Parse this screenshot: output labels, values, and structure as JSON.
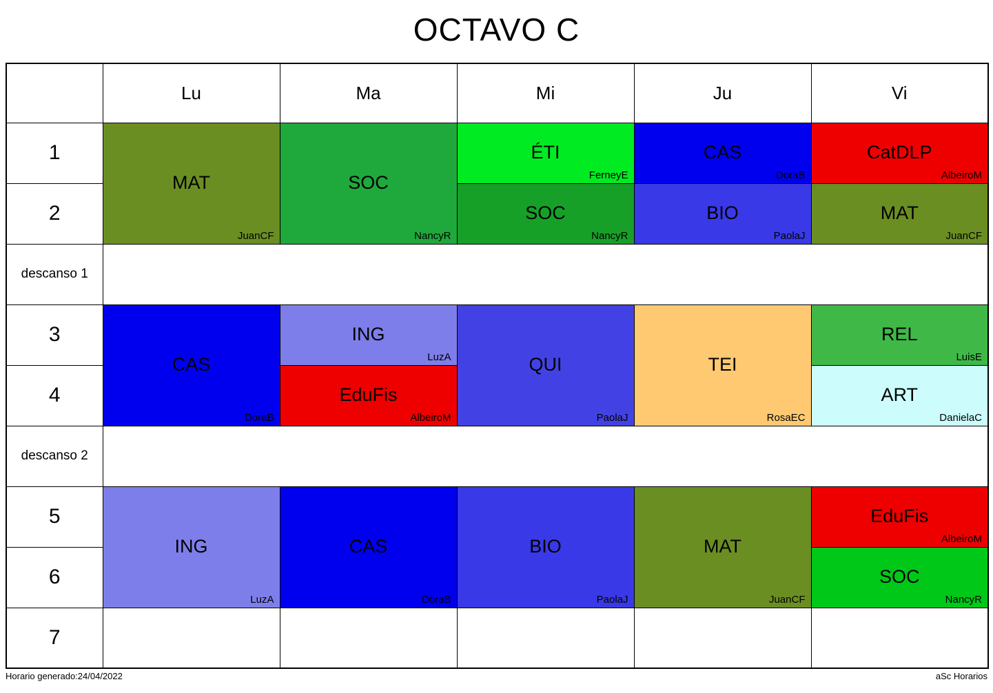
{
  "title": "OCTAVO C",
  "days": [
    "Lu",
    "Ma",
    "Mi",
    "Ju",
    "Vi"
  ],
  "periods": [
    "1",
    "2",
    "descanso 1",
    "3",
    "4",
    "descanso 2",
    "5",
    "6",
    "7"
  ],
  "cells": {
    "lu12": {
      "subject": "MAT",
      "teacher": "JuanCF",
      "color": "#6B8E23"
    },
    "ma12": {
      "subject": "SOC",
      "teacher": "NancyR",
      "color": "#1FA83C"
    },
    "mi1": {
      "subject": "ÉTI",
      "teacher": "FerneyE",
      "color": "#00EB22"
    },
    "mi2": {
      "subject": "SOC",
      "teacher": "NancyR",
      "color": "#17A028"
    },
    "ju1": {
      "subject": "CAS",
      "teacher": "DoraB",
      "color": "#0000EE"
    },
    "ju2": {
      "subject": "BIO",
      "teacher": "PaolaJ",
      "color": "#3939E8"
    },
    "vi1": {
      "subject": "CatDLP",
      "teacher": "AlbeiroM",
      "color": "#EE0000"
    },
    "vi2": {
      "subject": "MAT",
      "teacher": "JuanCF",
      "color": "#6B8E23"
    },
    "lu34": {
      "subject": "CAS",
      "teacher": "DoraB",
      "color": "#0000EE"
    },
    "ma3": {
      "subject": "ING",
      "teacher": "LuzA",
      "color": "#7E7EEA"
    },
    "ma4": {
      "subject": "EduFis",
      "teacher": "AlbeiroM",
      "color": "#EE0000"
    },
    "mi34": {
      "subject": "QUI",
      "teacher": "PaolaJ",
      "color": "#4242E4"
    },
    "ju34": {
      "subject": "TEI",
      "teacher": "RosaEC",
      "color": "#FFC971"
    },
    "vi3": {
      "subject": "REL",
      "teacher": "LuisE",
      "color": "#40B848"
    },
    "vi4": {
      "subject": "ART",
      "teacher": "DanielaC",
      "color": "#CCFCFC"
    },
    "lu56": {
      "subject": "ING",
      "teacher": "LuzA",
      "color": "#7E7EEA"
    },
    "ma56": {
      "subject": "CAS",
      "teacher": "DoraB",
      "color": "#0000EE"
    },
    "mi56": {
      "subject": "BIO",
      "teacher": "PaolaJ",
      "color": "#3939E8"
    },
    "ju56": {
      "subject": "MAT",
      "teacher": "JuanCF",
      "color": "#6B8E23"
    },
    "vi5": {
      "subject": "EduFis",
      "teacher": "AlbeiroM",
      "color": "#EE0000"
    },
    "vi6": {
      "subject": "SOC",
      "teacher": "NancyR",
      "color": "#00C818"
    }
  },
  "footer": {
    "left": "Horario generado:24/04/2022",
    "right": "aSc Horarios"
  }
}
